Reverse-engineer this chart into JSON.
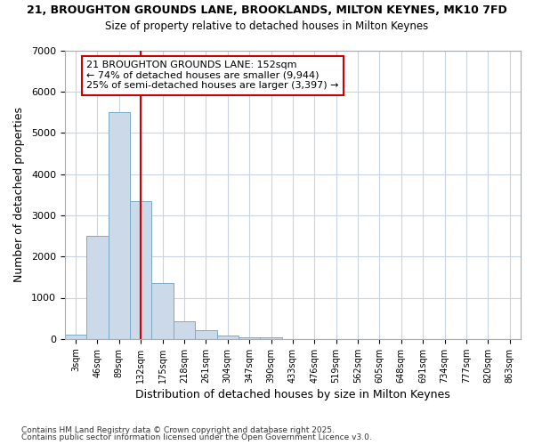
{
  "title_line1": "21, BROUGHTON GROUNDS LANE, BROOKLANDS, MILTON KEYNES, MK10 7FD",
  "title_line2": "Size of property relative to detached houses in Milton Keynes",
  "xlabel": "Distribution of detached houses by size in Milton Keynes",
  "ylabel": "Number of detached properties",
  "categories": [
    "3sqm",
    "46sqm",
    "89sqm",
    "132sqm",
    "175sqm",
    "218sqm",
    "261sqm",
    "304sqm",
    "347sqm",
    "390sqm",
    "433sqm",
    "476sqm",
    "519sqm",
    "562sqm",
    "605sqm",
    "648sqm",
    "691sqm",
    "734sqm",
    "777sqm",
    "820sqm",
    "863sqm"
  ],
  "values": [
    100,
    2500,
    5500,
    3350,
    1350,
    430,
    220,
    80,
    50,
    50,
    0,
    0,
    0,
    0,
    0,
    0,
    0,
    0,
    0,
    0,
    0
  ],
  "bar_color": "#ccd9e8",
  "bar_edge_color": "#7aaac8",
  "vline_x": 3,
  "vline_color": "#cc0000",
  "annotation_text": "21 BROUGHTON GROUNDS LANE: 152sqm\n← 74% of detached houses are smaller (9,944)\n25% of semi-detached houses are larger (3,397) →",
  "annotation_box_color": "#ffffff",
  "annotation_box_edge": "#cc0000",
  "ylim": [
    0,
    7000
  ],
  "yticks": [
    0,
    1000,
    2000,
    3000,
    4000,
    5000,
    6000,
    7000
  ],
  "footer_line1": "Contains HM Land Registry data © Crown copyright and database right 2025.",
  "footer_line2": "Contains public sector information licensed under the Open Government Licence v3.0.",
  "bg_color": "#ffffff",
  "plot_bg_color": "#ffffff",
  "grid_color": "#c8d4e0"
}
